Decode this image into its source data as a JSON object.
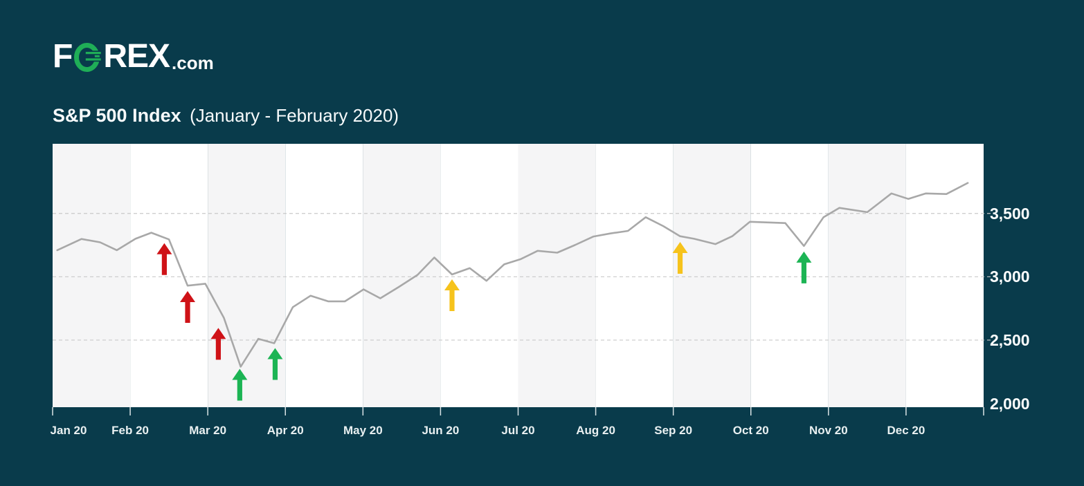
{
  "brand": {
    "name": "FOREX.com",
    "logo_prefix": "F",
    "logo_suffix": "REX",
    "logo_tld": ".com"
  },
  "title": {
    "main": "S&P 500 Index",
    "subtitle": "(January - February 2020)"
  },
  "colors": {
    "background": "#093b4b",
    "band_shaded": "#f5f5f6",
    "band_plain": "#ffffff",
    "line": "#a8a8a8",
    "gridline": "#c9c9c9",
    "tick": "#dbe4e6",
    "red": "#cf1217",
    "green": "#1cb454",
    "yellow": "#f6c31c",
    "logo_green": "#1fae57"
  },
  "chart_data": {
    "type": "line",
    "title": "S&P 500 Index (January - February 2020)",
    "xlabel": "",
    "ylabel": "",
    "grid": "horizontal-dashed",
    "band_shading": "monthly-alternating, first month shaded",
    "legend": "none",
    "x_tick_labels": [
      "Jan 20",
      "Feb 20",
      "Mar 20",
      "Apr 20",
      "May 20",
      "Jun 20",
      "Jul 20",
      "Aug 20",
      "Sep 20",
      "Oct 20",
      "Nov 20",
      "Dec 20"
    ],
    "y_axis": {
      "side": "right",
      "ylim": [
        1970,
        4050
      ],
      "gridline_values": [
        3500,
        3000,
        2500
      ],
      "ticks": [
        {
          "label": "3,500",
          "value": 3500
        },
        {
          "label": "3,000",
          "value": 3000
        },
        {
          "label": "2,500",
          "value": 2500
        },
        {
          "label": "2,000",
          "value": 2000
        }
      ]
    },
    "series": [
      {
        "name": "S&P 500 Index",
        "x_unit": "per-mille position across Jan-Dec 2020 axis",
        "points": [
          [
            5,
            3210
          ],
          [
            31,
            3298
          ],
          [
            51,
            3272
          ],
          [
            69,
            3210
          ],
          [
            89,
            3300
          ],
          [
            106,
            3348
          ],
          [
            125,
            3295
          ],
          [
            145,
            2930
          ],
          [
            164,
            2945
          ],
          [
            184,
            2675
          ],
          [
            202,
            2290
          ],
          [
            221,
            2510
          ],
          [
            238,
            2475
          ],
          [
            258,
            2760
          ],
          [
            277,
            2850
          ],
          [
            296,
            2806
          ],
          [
            314,
            2806
          ],
          [
            334,
            2900
          ],
          [
            352,
            2830
          ],
          [
            372,
            2920
          ],
          [
            392,
            3015
          ],
          [
            410,
            3152
          ],
          [
            429,
            3018
          ],
          [
            448,
            3068
          ],
          [
            466,
            2968
          ],
          [
            485,
            3098
          ],
          [
            503,
            3140
          ],
          [
            521,
            3205
          ],
          [
            542,
            3190
          ],
          [
            561,
            3250
          ],
          [
            581,
            3318
          ],
          [
            599,
            3342
          ],
          [
            618,
            3362
          ],
          [
            637,
            3470
          ],
          [
            656,
            3400
          ],
          [
            674,
            3320
          ],
          [
            689,
            3300
          ],
          [
            712,
            3258
          ],
          [
            730,
            3320
          ],
          [
            749,
            3434
          ],
          [
            787,
            3424
          ],
          [
            807,
            3243
          ],
          [
            828,
            3470
          ],
          [
            845,
            3544
          ],
          [
            875,
            3510
          ],
          [
            901,
            3658
          ],
          [
            919,
            3615
          ],
          [
            938,
            3658
          ],
          [
            960,
            3653
          ],
          [
            983,
            3741
          ]
        ]
      }
    ],
    "events": [
      {
        "type": "arrow-up",
        "color": "red",
        "t": 120,
        "value": 3265
      },
      {
        "type": "arrow-up",
        "color": "red",
        "t": 145,
        "value": 2887
      },
      {
        "type": "arrow-up",
        "color": "red",
        "t": 178,
        "value": 2596
      },
      {
        "type": "arrow-up",
        "color": "green",
        "t": 201,
        "value": 2273
      },
      {
        "type": "arrow-up",
        "color": "green",
        "t": 239,
        "value": 2437
      },
      {
        "type": "arrow-up",
        "color": "yellow",
        "t": 429,
        "value": 2980
      },
      {
        "type": "arrow-up",
        "color": "yellow",
        "t": 674,
        "value": 3275
      },
      {
        "type": "arrow-up",
        "color": "green",
        "t": 807,
        "value": 3199
      }
    ]
  }
}
